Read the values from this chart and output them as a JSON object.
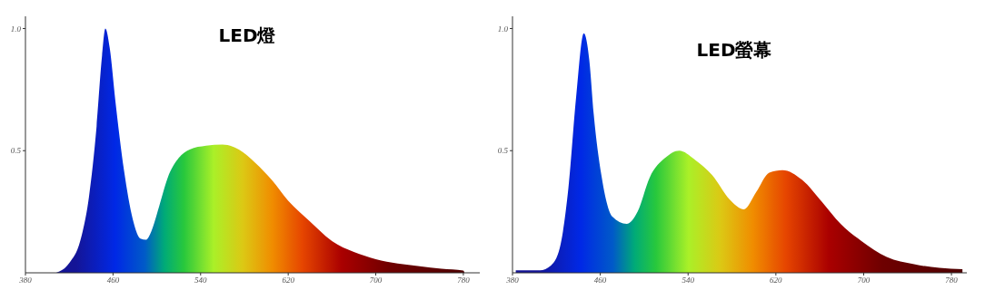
{
  "chart_data": [
    {
      "type": "area",
      "title": "LED燈",
      "xlim": [
        380,
        795
      ],
      "xticks": [
        380,
        460,
        540,
        620,
        700,
        780
      ],
      "ylim": [
        0,
        1.05
      ],
      "yticks": [
        0.5,
        {
          "value": 1.0,
          "label": "1.0"
        }
      ],
      "grid": false,
      "legend": false,
      "series": [
        {
          "x": [
            408,
            420,
            430,
            438,
            445,
            450,
            453,
            457,
            462,
            470,
            478,
            485,
            490,
            495,
            502,
            510,
            520,
            530,
            545,
            560,
            575,
            590,
            605,
            620,
            640,
            660,
            680,
            700,
            720,
            740,
            760,
            780,
            781
          ],
          "values": [
            0,
            0.04,
            0.13,
            0.31,
            0.6,
            0.89,
            1.0,
            0.92,
            0.71,
            0.42,
            0.22,
            0.14,
            0.135,
            0.17,
            0.27,
            0.39,
            0.47,
            0.505,
            0.52,
            0.525,
            0.505,
            0.45,
            0.38,
            0.295,
            0.21,
            0.13,
            0.085,
            0.056,
            0.038,
            0.027,
            0.017,
            0.009,
            0
          ]
        }
      ]
    },
    {
      "type": "area",
      "title": "LED螢幕",
      "xlim": [
        380,
        794
      ],
      "xticks": [
        380,
        460,
        540,
        620,
        700,
        780
      ],
      "ylim": [
        0,
        1.05
      ],
      "yticks": [
        0.5,
        {
          "value": 1.0,
          "label": "1.0"
        }
      ],
      "grid": false,
      "legend": false,
      "series": [
        {
          "x": [
            383,
            405,
            415,
            423,
            431,
            438,
            445,
            450,
            454,
            461,
            471,
            484,
            494,
            505,
            519,
            532,
            547,
            562,
            578,
            591,
            602,
            614,
            626,
            644,
            662,
            679,
            698,
            721,
            746,
            769,
            790
          ],
          "values": [
            0.01,
            0.01,
            0.03,
            0.1,
            0.35,
            0.72,
            0.98,
            0.87,
            0.65,
            0.4,
            0.23,
            0.2,
            0.25,
            0.39,
            0.47,
            0.5,
            0.46,
            0.4,
            0.3,
            0.26,
            0.33,
            0.41,
            0.42,
            0.38,
            0.29,
            0.2,
            0.13,
            0.065,
            0.035,
            0.02,
            0.015
          ]
        }
      ]
    }
  ]
}
